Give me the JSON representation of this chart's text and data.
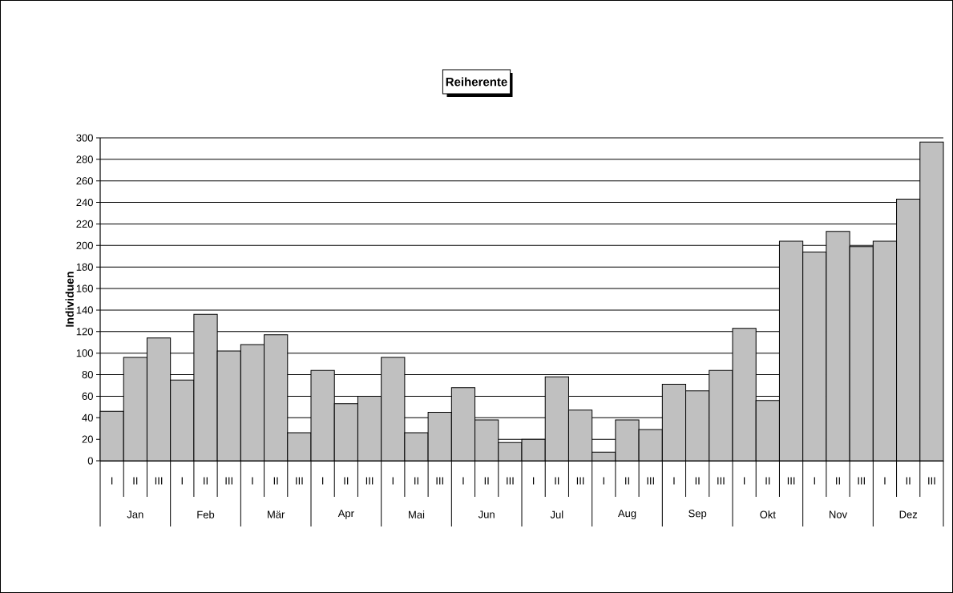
{
  "chart_data": {
    "type": "bar",
    "title": "Reiherente",
    "ylabel": "Individuen",
    "categories": [
      "I",
      "II",
      "III",
      "I",
      "II",
      "III",
      "I",
      "II",
      "III",
      "I",
      "II",
      "III",
      "I",
      "II",
      "III",
      "I",
      "II",
      "III",
      "I",
      "II",
      "III",
      "I",
      "II",
      "III",
      "I",
      "II",
      "III",
      "I",
      "II",
      "III",
      "I",
      "II",
      "III",
      "I",
      "II",
      "III"
    ],
    "values": [
      46,
      96,
      114,
      75,
      136,
      102,
      108,
      117,
      26,
      84,
      53,
      60,
      96,
      26,
      45,
      68,
      38,
      17,
      20,
      78,
      47,
      8,
      38,
      29,
      71,
      65,
      84,
      123,
      56,
      204,
      194,
      213,
      199,
      204,
      243,
      296
    ],
    "color": "#c0c0c0",
    "ylim": [
      0,
      300
    ],
    "yticks": [
      0,
      20,
      40,
      60,
      80,
      100,
      120,
      140,
      160,
      180,
      200,
      220,
      240,
      260,
      280,
      300
    ],
    "grid": "y",
    "annotations": [
      {
        "text": "Jan"
      },
      {
        "text": "Feb"
      },
      {
        "text": "Mär"
      },
      {
        "text": "Apr"
      },
      {
        "text": "Mai"
      },
      {
        "text": "Jun"
      },
      {
        "text": "Jul"
      },
      {
        "text": "Aug"
      },
      {
        "text": "Sep"
      },
      {
        "text": "Okt"
      },
      {
        "text": "Nov"
      },
      {
        "text": "Dez"
      }
    ]
  }
}
